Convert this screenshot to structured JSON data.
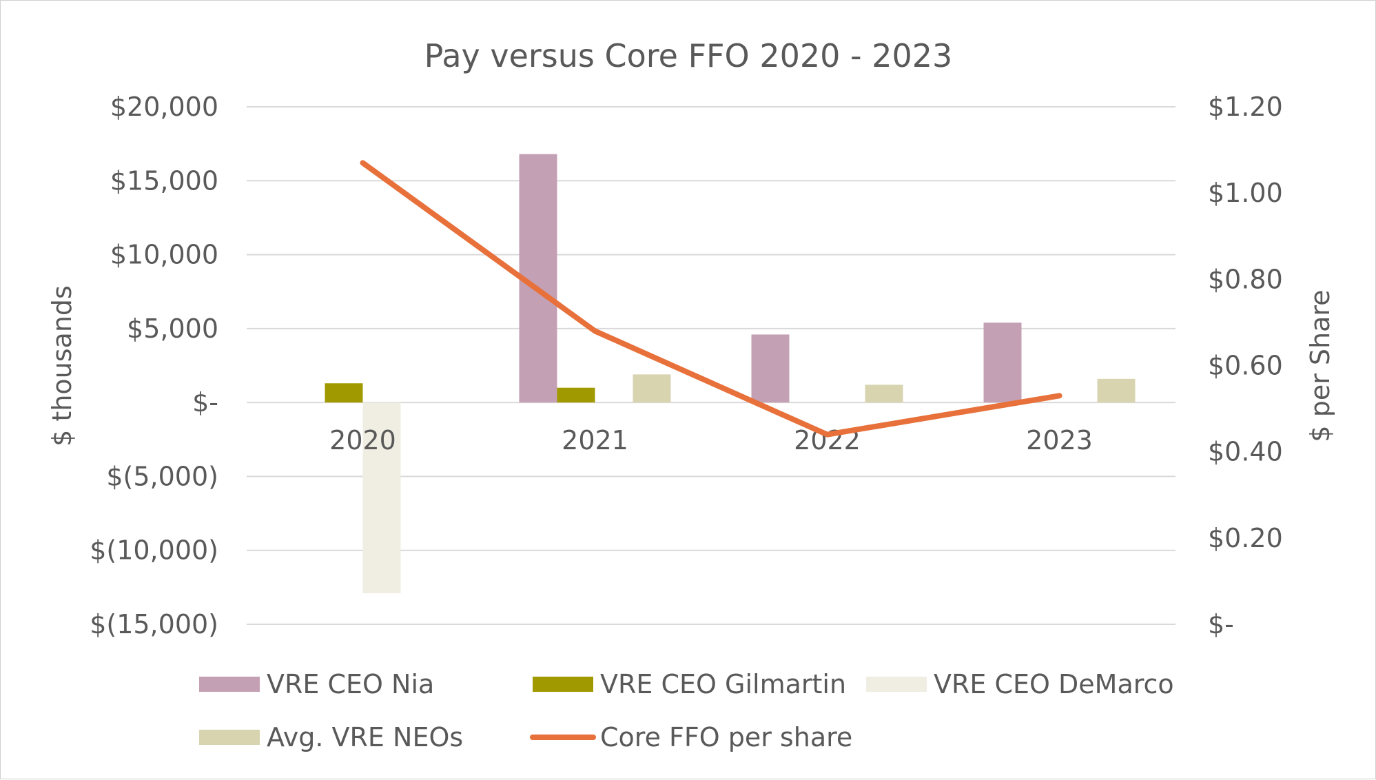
{
  "chart_data": {
    "type": "bar",
    "title": "Pay versus Core FFO 2020 - 2023",
    "categories": [
      "2020",
      "2021",
      "2022",
      "2023"
    ],
    "ylabel": "$ thousands",
    "y2label": "$ per Share",
    "ylim": [
      -15000,
      20000
    ],
    "y2lim": [
      0,
      1.2
    ],
    "yticks": [
      {
        "value": 20000,
        "label": "$20,000"
      },
      {
        "value": 15000,
        "label": "$15,000"
      },
      {
        "value": 10000,
        "label": "$10,000"
      },
      {
        "value": 5000,
        "label": "$5,000"
      },
      {
        "value": 0,
        "label": "$-"
      },
      {
        "value": -5000,
        "label": "$(5,000)"
      },
      {
        "value": -10000,
        "label": "$(10,000)"
      },
      {
        "value": -15000,
        "label": "$(15,000)"
      }
    ],
    "y2ticks": [
      {
        "value": 1.2,
        "label": "$1.20"
      },
      {
        "value": 1.0,
        "label": "$1.00"
      },
      {
        "value": 0.8,
        "label": "$0.80"
      },
      {
        "value": 0.6,
        "label": "$0.60"
      },
      {
        "value": 0.4,
        "label": "$0.40"
      },
      {
        "value": 0.2,
        "label": "$0.20"
      },
      {
        "value": 0,
        "label": "$-"
      }
    ],
    "series": [
      {
        "name": "VRE CEO Nia",
        "kind": "bar",
        "axis": "left",
        "color": "#c4a0b4",
        "values": [
          null,
          16800,
          4600,
          5400
        ]
      },
      {
        "name": "VRE CEO Gilmartin",
        "kind": "bar",
        "axis": "left",
        "color": "#a09a00",
        "values": [
          1300,
          1000,
          null,
          null
        ]
      },
      {
        "name": "VRE CEO DeMarco",
        "kind": "bar",
        "axis": "left",
        "color": "#f0eee2",
        "values": [
          -12900,
          null,
          null,
          null
        ]
      },
      {
        "name": "Avg. VRE NEOs",
        "kind": "bar",
        "axis": "left",
        "color": "#d8d4b0",
        "values": [
          null,
          1900,
          1200,
          1600
        ]
      },
      {
        "name": "Core FFO per share",
        "kind": "line",
        "axis": "right",
        "color": "#e8703a",
        "values": [
          1.07,
          0.68,
          0.44,
          0.53
        ]
      }
    ]
  }
}
